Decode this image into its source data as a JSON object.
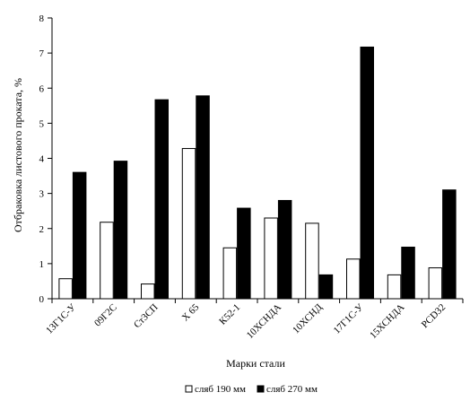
{
  "chart_data": {
    "type": "bar",
    "title": "",
    "xlabel": "Марки стали",
    "ylabel": "Отбраковка листового проката, %",
    "ylim": [
      0,
      8
    ],
    "yticks": [
      "0",
      "1",
      "2",
      "3",
      "4",
      "5",
      "6",
      "7",
      "8"
    ],
    "categories": [
      "13Г1С-У",
      "09Г2С",
      "Ст3СП",
      "Х 65",
      "К52-1",
      "10ХСНДА",
      "10ХСНД",
      "17Г1С-У",
      "15ХСНДА",
      "РСD32"
    ],
    "series": [
      {
        "name": "сляб 190 мм",
        "color": "#ffffff",
        "values": [
          0.57,
          2.18,
          0.42,
          4.28,
          1.45,
          2.3,
          2.15,
          1.13,
          0.68,
          0.88
        ]
      },
      {
        "name": "сляб 270 мм",
        "color": "#000000",
        "values": [
          3.6,
          3.92,
          5.67,
          5.78,
          2.58,
          2.8,
          0.68,
          7.17,
          1.47,
          3.1
        ]
      }
    ],
    "grid": false,
    "legend": "bottom"
  }
}
